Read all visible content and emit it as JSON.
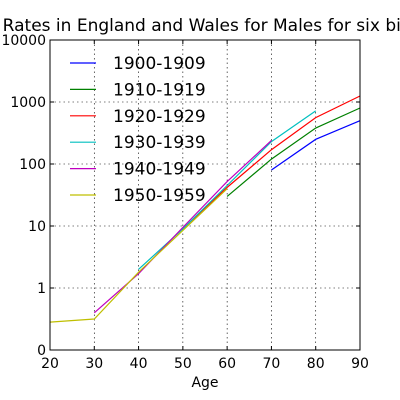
{
  "chart_data": {
    "type": "line",
    "title": "Death Rates in England and Wales for Males for six birth cohorts",
    "xlabel": "Age",
    "ylabel": "",
    "xlim": [
      20,
      90
    ],
    "ylim": [
      0,
      10000
    ],
    "y_scale": "symlog",
    "grid": true,
    "legend_position": "upper-left",
    "x_ticks": [
      "20",
      "30",
      "40",
      "50",
      "60",
      "70",
      "80",
      "90"
    ],
    "y_ticks": [
      "0",
      "1",
      "10",
      "100",
      "1000",
      "10000"
    ],
    "series": [
      {
        "name": "1900-1909",
        "color": "#0000ff",
        "x": [
          70,
          80,
          90
        ],
        "y": [
          80,
          250,
          500
        ]
      },
      {
        "name": "1910-1919",
        "color": "#008000",
        "x": [
          60,
          70,
          80,
          90
        ],
        "y": [
          30,
          120,
          380,
          800
        ]
      },
      {
        "name": "1920-1929",
        "color": "#ff0000",
        "x": [
          50,
          60,
          70,
          80,
          90
        ],
        "y": [
          9,
          42,
          170,
          560,
          1250
        ]
      },
      {
        "name": "1930-1939",
        "color": "#00bfbf",
        "x": [
          40,
          50,
          60,
          70,
          80
        ],
        "y": [
          2.0,
          9,
          45,
          230,
          720
        ]
      },
      {
        "name": "1940-1949",
        "color": "#bf00bf",
        "x": [
          30,
          40,
          50,
          60,
          70
        ],
        "y": [
          0.6,
          1.7,
          9.5,
          52,
          240
        ]
      },
      {
        "name": "1950-1959",
        "color": "#bfbf00",
        "x": [
          20,
          30,
          40,
          50,
          60
        ],
        "y": [
          0.45,
          0.5,
          1.8,
          8.5,
          40
        ]
      }
    ]
  }
}
